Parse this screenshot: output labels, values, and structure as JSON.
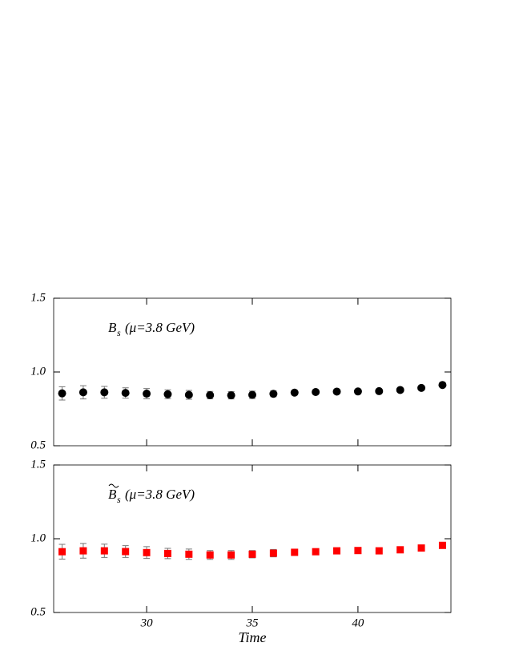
{
  "chart_data": [
    {
      "type": "scatter",
      "marker": "circle",
      "color": "#000000",
      "annotation": {
        "symbol": "B",
        "subscript": "s",
        "text": "(μ=3.8 GeV)"
      },
      "x": [
        26,
        27,
        28,
        29,
        30,
        31,
        32,
        33,
        34,
        35,
        36,
        37,
        38,
        39,
        40,
        41,
        42,
        43,
        44
      ],
      "values": [
        0.855,
        0.862,
        0.862,
        0.858,
        0.853,
        0.849,
        0.845,
        0.843,
        0.842,
        0.845,
        0.852,
        0.86,
        0.864,
        0.867,
        0.868,
        0.87,
        0.878,
        0.892,
        0.912
      ],
      "errors": [
        0.045,
        0.045,
        0.04,
        0.035,
        0.035,
        0.03,
        0.03,
        0.025,
        0.025,
        0.025,
        0.02,
        0.015,
        0.015,
        0.01,
        0.01,
        0.01,
        0.01,
        0.01,
        0.01
      ],
      "xlim": [
        25.6,
        44.4
      ],
      "ylim": [
        0.5,
        1.5
      ],
      "xticks": [
        30,
        35,
        40
      ],
      "yticks": [
        {
          "value": 0.5,
          "label": "0.5"
        },
        {
          "value": 1,
          "label": "1.0"
        },
        {
          "value": 1.5,
          "label": "1.5"
        }
      ]
    },
    {
      "type": "scatter",
      "marker": "square",
      "color": "#ff0000",
      "annotation": {
        "symbol": "B",
        "subscript": "s",
        "text": "(μ=3.8 GeV)"
      },
      "x": [
        26,
        27,
        28,
        29,
        30,
        31,
        32,
        33,
        34,
        35,
        36,
        37,
        38,
        39,
        40,
        41,
        42,
        43,
        44
      ],
      "values": [
        0.912,
        0.918,
        0.918,
        0.913,
        0.906,
        0.9,
        0.895,
        0.89,
        0.89,
        0.895,
        0.902,
        0.908,
        0.912,
        0.918,
        0.92,
        0.918,
        0.925,
        0.937,
        0.955
      ],
      "errors": [
        0.05,
        0.05,
        0.045,
        0.04,
        0.04,
        0.035,
        0.035,
        0.03,
        0.03,
        0.025,
        0.025,
        0.02,
        0.02,
        0.015,
        0.01,
        0.01,
        0.01,
        0.01,
        0.01
      ],
      "xlim": [
        25.6,
        44.4
      ],
      "ylim": [
        0.5,
        1.5
      ],
      "xticks": [
        30,
        35,
        40
      ],
      "xlabel": "Time",
      "yticks": [
        {
          "value": 0.5,
          "label": "0.5"
        },
        {
          "value": 1,
          "label": "1.0"
        },
        {
          "value": 1.5,
          "label": "1.5"
        }
      ]
    }
  ]
}
